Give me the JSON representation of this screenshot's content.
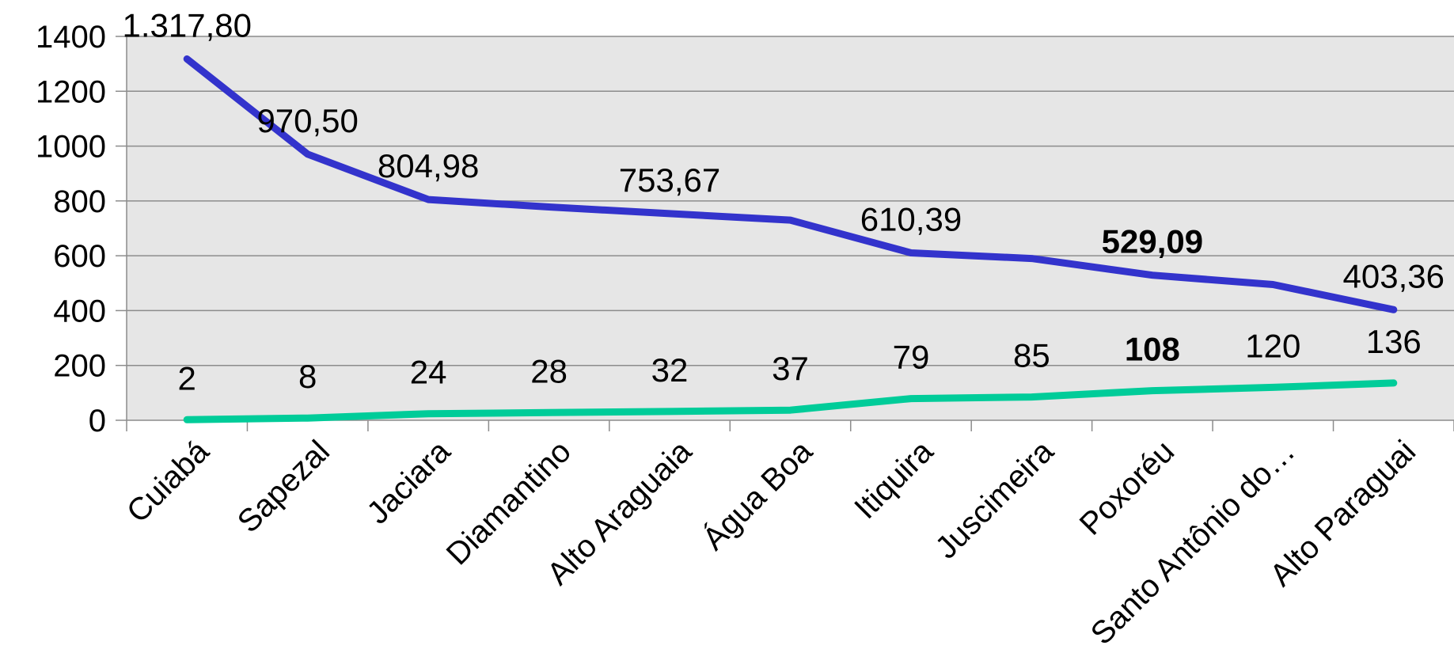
{
  "chart_data": {
    "type": "line",
    "categories": [
      "Cuiabá",
      "Sapezal",
      "Jaciara",
      "Diamantino",
      "Alto Araguaia",
      "Água Boa",
      "Itiquira",
      "Juscimeira",
      "Poxoréu",
      "Santo Antônio do…",
      "Alto Paraguai"
    ],
    "ylim": [
      0,
      1400
    ],
    "y_ticks": [
      "0",
      "200",
      "400",
      "600",
      "800",
      "1000",
      "1200",
      "1400"
    ],
    "grid": true,
    "legend": "none",
    "plot_background": "#e6e6e6",
    "series": [
      {
        "color": "#3333cc",
        "values": [
          1317.8,
          970.5,
          804.98,
          778,
          753.67,
          730,
          610.39,
          590,
          529.09,
          495,
          403.36
        ],
        "data_labels": [
          "1.317,80",
          "970,50",
          "804,98",
          "",
          "753,67",
          "",
          "610,39",
          "",
          "529,09",
          "",
          "403,36"
        ],
        "bold_index": 8
      },
      {
        "color": "#00cc99",
        "values": [
          2,
          8,
          24,
          28,
          32,
          37,
          79,
          85,
          108,
          120,
          136
        ],
        "data_labels": [
          "2",
          "8",
          "24",
          "28",
          "32",
          "37",
          "79",
          "85",
          "108",
          "120",
          "136"
        ],
        "bold_index": 8
      }
    ]
  }
}
